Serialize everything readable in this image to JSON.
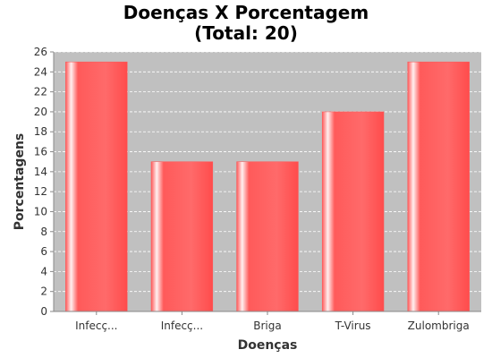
{
  "chart_data": {
    "type": "bar",
    "title": "Doenças X Porcentagem",
    "subtitle": "(Total: 20)",
    "xlabel": "Doenças",
    "ylabel": "Porcentagens",
    "categories": [
      "Infecç...",
      "Infecç...",
      "Briga",
      "T-Virus",
      "Zulombriga"
    ],
    "values": [
      25,
      15,
      15,
      20,
      25
    ],
    "ylim": [
      0,
      26
    ],
    "yticks": [
      0,
      2,
      4,
      6,
      8,
      10,
      12,
      14,
      16,
      18,
      20,
      22,
      24,
      26
    ],
    "grid": true,
    "legend": "none",
    "colors": {
      "bar": "#ff5555",
      "plot_background": "#c0c0c0",
      "grid": "#ffffff"
    }
  }
}
